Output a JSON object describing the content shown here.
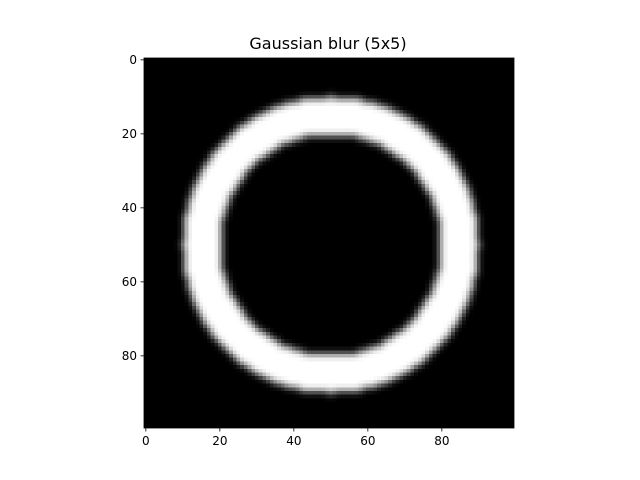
{
  "chart_data": {
    "type": "heatmap",
    "title": "Gaussian blur (5x5)",
    "xlabel": "",
    "ylabel": "",
    "image_size": [
      100,
      100
    ],
    "colormap": "gray",
    "xlim": [
      -0.5,
      99.5
    ],
    "ylim": [
      99.5,
      -0.5
    ],
    "xticks": [
      0,
      20,
      40,
      60,
      80
    ],
    "yticks": [
      0,
      20,
      40,
      60,
      80
    ],
    "xtick_labels": [
      "0",
      "20",
      "40",
      "60",
      "80"
    ],
    "ytick_labels": [
      "0",
      "20",
      "40",
      "60",
      "80"
    ],
    "content": {
      "shape": "ring",
      "center": [
        50,
        50
      ],
      "outer_radius": 40,
      "inner_radius": 30,
      "value_inside_ring": 1,
      "value_elsewhere": 0,
      "blur_kernel": "5x5"
    },
    "grid": false
  }
}
